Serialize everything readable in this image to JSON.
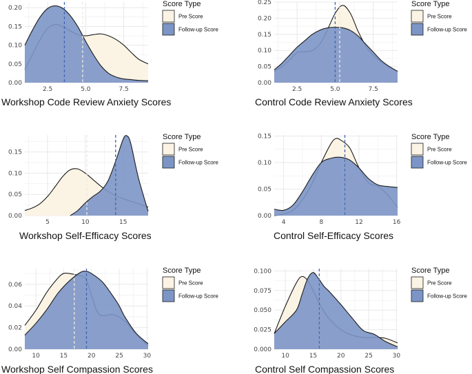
{
  "colors": {
    "pre_fill": "#FBF3E4",
    "follow_fill": "#7C95C6",
    "pre_line": "#EFEAE0",
    "follow_line": "#3E66B5",
    "grid": "#E8E8E8",
    "outline": "#1A1A1A"
  },
  "chart_data": [
    {
      "type": "area",
      "xlabel": "Workshop Code Review Anxiety Scores",
      "ylabel": "",
      "xlim": [
        1,
        9.1
      ],
      "ylim": [
        0,
        0.215
      ],
      "xticks": [
        2.5,
        5.0,
        7.5
      ],
      "xtick_labels": [
        "2.5",
        "5.0",
        "7.5"
      ],
      "yticks": [
        0,
        0.05,
        0.1,
        0.15,
        0.2
      ],
      "ytick_labels": [
        "0.00",
        "0.05",
        "0.10",
        "0.15",
        "0.20"
      ],
      "legend": {
        "title": "Score Type",
        "entries": [
          "Pre Score",
          "Follow-up Score"
        ],
        "position": "right"
      },
      "series": [
        {
          "name": "Pre Score",
          "mean": 4.8,
          "x": [
            1.0,
            1.5,
            2.0,
            2.5,
            3.0,
            3.5,
            4.0,
            4.5,
            5.0,
            5.5,
            6.0,
            6.5,
            7.0,
            7.5,
            8.0,
            8.5,
            9.1
          ],
          "y": [
            0.035,
            0.075,
            0.115,
            0.145,
            0.155,
            0.15,
            0.138,
            0.128,
            0.125,
            0.128,
            0.13,
            0.125,
            0.115,
            0.1,
            0.08,
            0.062,
            0.05
          ]
        },
        {
          "name": "Follow-up Score",
          "mean": 3.6,
          "x": [
            1.0,
            1.5,
            2.0,
            2.5,
            3.0,
            3.5,
            4.0,
            4.5,
            5.0,
            5.5,
            6.0,
            6.5,
            7.0,
            7.5,
            8.0,
            8.5,
            9.1
          ],
          "y": [
            0.1,
            0.14,
            0.175,
            0.198,
            0.205,
            0.198,
            0.178,
            0.148,
            0.11,
            0.075,
            0.045,
            0.025,
            0.015,
            0.01,
            0.008,
            0.006,
            0.005
          ]
        }
      ]
    },
    {
      "type": "area",
      "xlabel": "Control Code Review Anxiety Scores",
      "ylabel": "",
      "xlim": [
        1,
        9.1
      ],
      "ylim": [
        0,
        0.25
      ],
      "xticks": [
        2.5,
        5.0,
        7.5
      ],
      "xtick_labels": [
        "2.5",
        "5.0",
        "7.5"
      ],
      "yticks": [
        0,
        0.05,
        0.1,
        0.15,
        0.2,
        0.25
      ],
      "ytick_labels": [
        "0.00",
        "0.05",
        "0.10",
        "0.15",
        "0.20",
        "0.25"
      ],
      "legend": {
        "title": "Score Type",
        "entries": [
          "Pre Score",
          "Follow-up Score"
        ],
        "position": "right"
      },
      "series": [
        {
          "name": "Pre Score",
          "mean": 5.3,
          "x": [
            1.0,
            1.5,
            2.0,
            2.5,
            3.0,
            3.5,
            4.0,
            4.5,
            5.0,
            5.5,
            6.0,
            6.5,
            7.0,
            7.5,
            8.0,
            8.5,
            9.1
          ],
          "y": [
            0.035,
            0.05,
            0.07,
            0.093,
            0.096,
            0.1,
            0.12,
            0.165,
            0.215,
            0.24,
            0.215,
            0.16,
            0.115,
            0.085,
            0.065,
            0.05,
            0.035
          ]
        },
        {
          "name": "Follow-up Score",
          "mean": 5.0,
          "x": [
            1.0,
            1.5,
            2.0,
            2.5,
            3.0,
            3.5,
            4.0,
            4.5,
            5.0,
            5.5,
            6.0,
            6.5,
            7.0,
            7.5,
            8.0,
            8.5,
            9.1
          ],
          "y": [
            0.04,
            0.06,
            0.085,
            0.11,
            0.13,
            0.15,
            0.163,
            0.17,
            0.172,
            0.17,
            0.162,
            0.145,
            0.12,
            0.095,
            0.07,
            0.052,
            0.035
          ]
        }
      ]
    },
    {
      "type": "area",
      "xlabel": "Workshop Self-Efficacy Scores",
      "ylabel": "",
      "xlim": [
        2,
        18.3
      ],
      "ylim": [
        0,
        0.19
      ],
      "xticks": [
        5,
        10,
        15
      ],
      "xtick_labels": [
        "5",
        "10",
        "15"
      ],
      "yticks": [
        0,
        0.05,
        0.1,
        0.15
      ],
      "ytick_labels": [
        "0.00",
        "0.05",
        "0.10",
        "0.15"
      ],
      "legend": {
        "title": "Score Type",
        "entries": [
          "Pre Score",
          "Follow-up Score"
        ],
        "position": "right"
      },
      "series": [
        {
          "name": "Pre Score",
          "mean": 10.2,
          "x": [
            2,
            3,
            4,
            5,
            6,
            7,
            8,
            9,
            10,
            11,
            12,
            13,
            14,
            15,
            16,
            17,
            18.3
          ],
          "y": [
            0.012,
            0.018,
            0.028,
            0.045,
            0.068,
            0.092,
            0.108,
            0.11,
            0.1,
            0.085,
            0.07,
            0.057,
            0.047,
            0.04,
            0.034,
            0.028,
            0.02
          ]
        },
        {
          "name": "Follow-up Score",
          "mean": 14.0,
          "x": [
            8.0,
            9,
            10,
            11,
            12,
            13,
            14,
            15,
            15.5,
            16,
            17,
            18.3
          ],
          "y": [
            0.0,
            0.012,
            0.03,
            0.045,
            0.058,
            0.082,
            0.128,
            0.18,
            0.188,
            0.17,
            0.09,
            0.01
          ]
        }
      ]
    },
    {
      "type": "area",
      "xlabel": "Control Self-Efficacy Scores",
      "ylabel": "",
      "xlim": [
        3,
        16.1
      ],
      "ylim": [
        0,
        0.152
      ],
      "xticks": [
        4,
        8,
        12,
        16
      ],
      "xtick_labels": [
        "4",
        "8",
        "12",
        "16"
      ],
      "yticks": [
        0,
        0.05,
        0.1,
        0.15
      ],
      "ytick_labels": [
        "0.00",
        "0.05",
        "0.10",
        "0.15"
      ],
      "legend": {
        "title": "Score Type",
        "entries": [
          "Pre Score",
          "Follow-up Score"
        ],
        "position": "right"
      },
      "series": [
        {
          "name": "Pre Score",
          "mean": 10.5,
          "x": [
            3.0,
            4,
            5,
            6,
            7,
            8,
            9,
            9.5,
            10,
            11,
            12,
            13,
            14,
            15,
            16.1
          ],
          "y": [
            0.0,
            0.003,
            0.01,
            0.03,
            0.06,
            0.1,
            0.135,
            0.145,
            0.143,
            0.128,
            0.09,
            0.062,
            0.055,
            0.04,
            0.015
          ]
        },
        {
          "name": "Follow-up Score",
          "mean": 10.5,
          "x": [
            3.0,
            4,
            5,
            6,
            7,
            8,
            9,
            10,
            11,
            12,
            13,
            14,
            15,
            16.1
          ],
          "y": [
            0.012,
            0.01,
            0.02,
            0.045,
            0.075,
            0.1,
            0.108,
            0.11,
            0.105,
            0.09,
            0.07,
            0.058,
            0.055,
            0.053
          ]
        }
      ]
    },
    {
      "type": "area",
      "xlabel": "Workshop Self Compassion Scores",
      "ylabel": "",
      "xlim": [
        8,
        30.2
      ],
      "ylim": [
        0,
        0.0745
      ],
      "xticks": [
        10,
        15,
        20,
        25,
        30
      ],
      "xtick_labels": [
        "10",
        "15",
        "20",
        "25",
        "30"
      ],
      "yticks": [
        0,
        0.02,
        0.04,
        0.06
      ],
      "ytick_labels": [
        "0.00",
        "0.02",
        "0.04",
        "0.06"
      ],
      "legend": {
        "title": "Score Type",
        "entries": [
          "Pre Score",
          "Follow-up Score"
        ],
        "position": "right"
      },
      "series": [
        {
          "name": "Pre Score",
          "mean": 16.9,
          "x": [
            8,
            10,
            12,
            14,
            15,
            16,
            17,
            18,
            19,
            20,
            21,
            22,
            24,
            26,
            28,
            30.2
          ],
          "y": [
            0.022,
            0.036,
            0.053,
            0.066,
            0.07,
            0.07,
            0.069,
            0.068,
            0.065,
            0.05,
            0.035,
            0.031,
            0.032,
            0.026,
            0.014,
            0.003
          ]
        },
        {
          "name": "Follow-up Score",
          "mean": 19.1,
          "x": [
            8,
            10,
            12,
            14,
            16,
            18,
            19,
            20,
            22,
            24,
            25,
            26,
            28,
            30.2
          ],
          "y": [
            0.013,
            0.024,
            0.037,
            0.052,
            0.063,
            0.071,
            0.072,
            0.07,
            0.062,
            0.048,
            0.04,
            0.03,
            0.015,
            0.005
          ]
        }
      ]
    },
    {
      "type": "area",
      "xlabel": "Control Self Compassion Scores",
      "ylabel": "",
      "xlim": [
        8,
        30.2
      ],
      "ylim": [
        0,
        0.103
      ],
      "xticks": [
        10,
        15,
        20,
        25,
        30
      ],
      "xtick_labels": [
        "10",
        "15",
        "20",
        "25",
        "30"
      ],
      "yticks": [
        0,
        0.025,
        0.05,
        0.075,
        0.1
      ],
      "ytick_labels": [
        "0.000",
        "0.025",
        "0.050",
        "0.075",
        "0.100"
      ],
      "legend": {
        "title": "Score Type",
        "entries": [
          "Pre Score",
          "Follow-up Score"
        ],
        "position": "right"
      },
      "series": [
        {
          "name": "Pre Score",
          "mean": 16.1,
          "x": [
            8,
            10,
            12,
            13,
            14,
            15,
            16,
            17,
            18,
            20,
            22,
            24,
            26,
            28,
            30.2
          ],
          "y": [
            0.02,
            0.055,
            0.085,
            0.093,
            0.088,
            0.075,
            0.06,
            0.048,
            0.038,
            0.025,
            0.018,
            0.015,
            0.015,
            0.014,
            0.008
          ]
        },
        {
          "name": "Follow-up Score",
          "mean": 16.1,
          "x": [
            8,
            10,
            12,
            13,
            14,
            15,
            16,
            17,
            18,
            20,
            22,
            24,
            26,
            28,
            30.2
          ],
          "y": [
            0.02,
            0.035,
            0.05,
            0.07,
            0.09,
            0.098,
            0.09,
            0.08,
            0.073,
            0.057,
            0.04,
            0.024,
            0.019,
            0.01,
            0.003
          ]
        }
      ]
    }
  ]
}
